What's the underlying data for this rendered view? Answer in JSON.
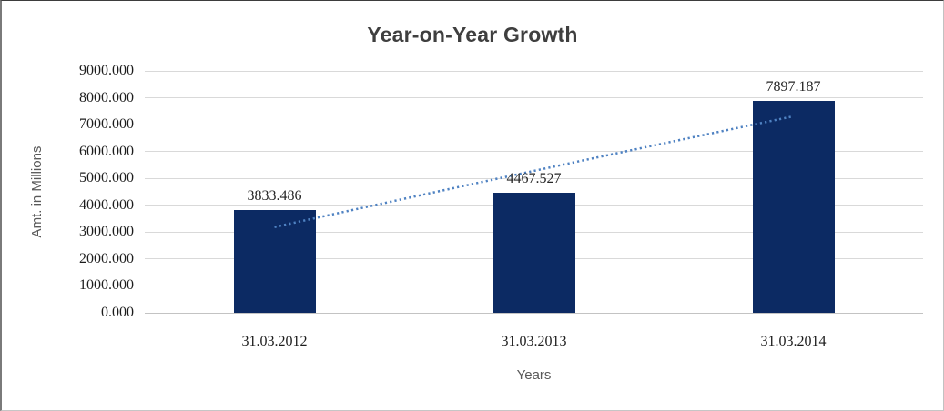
{
  "chart_data": {
    "type": "bar",
    "title": "Year-on-Year Growth",
    "xlabel": "Years",
    "ylabel": "Amt. in Millions",
    "categories": [
      "31.03.2012",
      "31.03.2013",
      "31.03.2014"
    ],
    "values": [
      3833.486,
      4467.527,
      7897.187
    ],
    "data_labels": [
      "3833.486",
      "4467.527",
      "7897.187"
    ],
    "ylim": [
      0,
      9000
    ],
    "y_tick_step": 1000,
    "y_tick_labels": [
      "0.000",
      "1000.000",
      "2000.000",
      "3000.000",
      "4000.000",
      "5000.000",
      "6000.000",
      "7000.000",
      "8000.000",
      "9000.000"
    ],
    "grid": true,
    "legend": "none",
    "bar_color": "#0c2a63",
    "gridline_color": "#d9d9d9",
    "title_color": "#3f3f3f",
    "axis_title_color": "#595959",
    "tick_label_color": "#1c1c1c",
    "trendline": {
      "style": "dotted",
      "color": "#4f82c2",
      "values": [
        3190,
        5280,
        7310
      ]
    }
  }
}
